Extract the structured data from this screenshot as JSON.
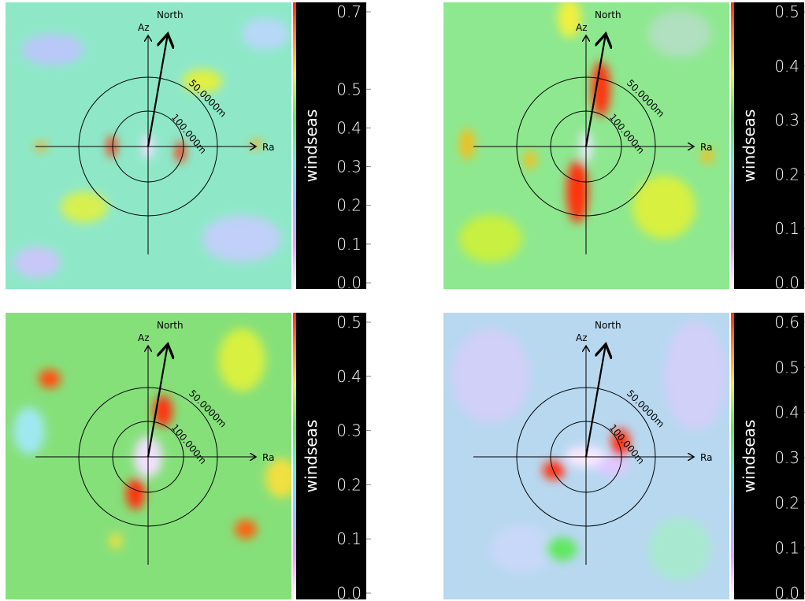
{
  "chart_data": [
    {
      "type": "heatmap",
      "colorbar_label": "windseas",
      "clim": [
        0,
        0.7
      ],
      "cticks": [
        {
          "value": 0,
          "label": "0.0"
        },
        0.1,
        0.2,
        0.3,
        0.4,
        0.5,
        0.7
      ],
      "az_label": "Az",
      "north_label": "North",
      "range_label": "Ra",
      "outer_circle_label": "50.0000m",
      "inner_circle_label": "100.000m"
    },
    {
      "type": "heatmap",
      "colorbar_label": "windseas",
      "clim": [
        0,
        0.5
      ],
      "cticks": [
        {
          "value": 0,
          "label": "0.0"
        },
        0.1,
        0.2,
        0.3,
        0.4,
        0.5
      ],
      "az_label": "Az",
      "north_label": "North",
      "range_label": "Ra",
      "outer_circle_label": "50.0000m",
      "inner_circle_label": "100.000m"
    },
    {
      "type": "heatmap",
      "colorbar_label": "windseas",
      "clim": [
        0,
        0.5
      ],
      "cticks": [
        {
          "value": 0,
          "label": "0.0"
        },
        0.1,
        0.2,
        0.3,
        0.4,
        0.5
      ],
      "az_label": "Az",
      "north_label": "North",
      "range_label": "Ra",
      "outer_circle_label": "50.0000m",
      "inner_circle_label": "100.000m"
    },
    {
      "type": "heatmap",
      "colorbar_label": "windseas",
      "clim": [
        0,
        0.6
      ],
      "cticks": [
        {
          "value": 0,
          "label": "0.0"
        },
        0.1,
        0.2,
        0.3,
        0.4,
        0.5,
        0.6
      ],
      "az_label": "Az",
      "north_label": "North",
      "range_label": "Ra",
      "outer_circle_label": "50.0000m",
      "inner_circle_label": "100.000m"
    }
  ]
}
